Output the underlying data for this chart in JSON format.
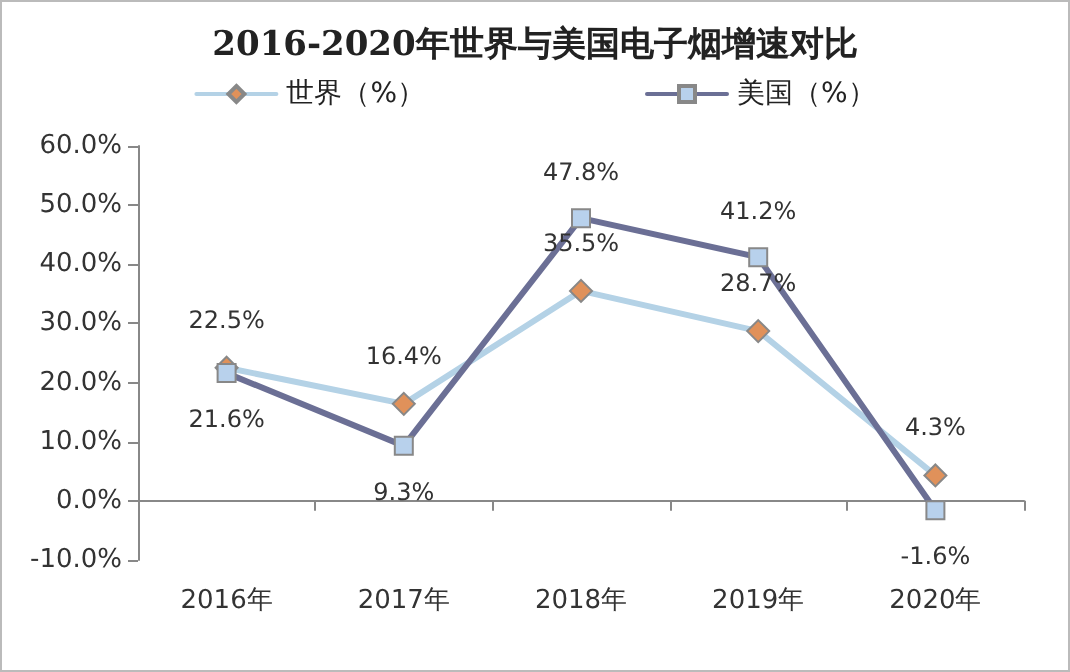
{
  "chart_data": {
    "type": "line",
    "title": "2016-2020年世界与美国电子烟增速对比",
    "categories": [
      "2016年",
      "2017年",
      "2018年",
      "2019年",
      "2020年"
    ],
    "series": [
      {
        "name": "世界（%）",
        "color": "#b4d2e6",
        "marker": "diamond",
        "values": [
          22.5,
          16.4,
          35.5,
          28.7,
          4.3
        ],
        "value_labels": [
          "22.5%",
          "16.4%",
          "35.5%",
          "28.7%",
          "4.3%"
        ]
      },
      {
        "name": "美国（%）",
        "color": "#6b6f95",
        "marker": "square",
        "values": [
          21.6,
          9.3,
          47.8,
          41.2,
          -1.6
        ],
        "value_labels": [
          "21.6%",
          "9.3%",
          "47.8%",
          "41.2%",
          "-1.6%"
        ]
      }
    ],
    "ylim": [
      -10,
      60
    ],
    "yticks": [
      {
        "value": -10,
        "label": "-10.0%"
      },
      {
        "value": 0,
        "label": "0.0%"
      },
      {
        "value": 10,
        "label": "10.0%"
      },
      {
        "value": 20,
        "label": "20.0%"
      },
      {
        "value": 30,
        "label": "30.0%"
      },
      {
        "value": 40,
        "label": "40.0%"
      },
      {
        "value": 50,
        "label": "50.0%"
      },
      {
        "value": 60,
        "label": "60.0%"
      }
    ],
    "legend": "top",
    "line_style": "solid"
  }
}
